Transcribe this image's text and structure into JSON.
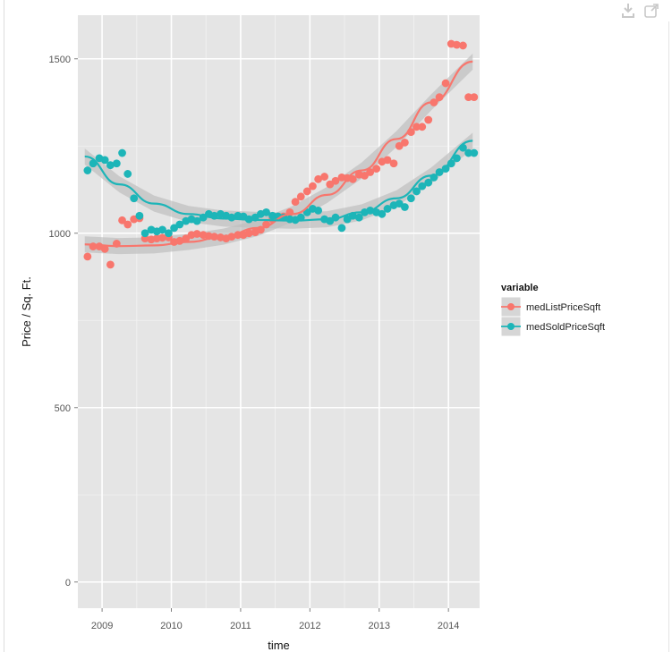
{
  "toolbar": {
    "download_icon": "download-icon",
    "popout_icon": "popout-icon"
  },
  "colors": {
    "panel_bg": "#e5e5e5",
    "grid": "#ffffff",
    "list_series": "#f8766d",
    "sold_series": "#1db5b8",
    "smooth_band": "#bfbfbf"
  },
  "chart_data": {
    "type": "scatter",
    "xlabel": "time",
    "ylabel": "Price / Sq. Ft.",
    "xlim": [
      2008.65,
      2014.45
    ],
    "ylim": [
      -75,
      1625
    ],
    "x_ticks": [
      2009,
      2010,
      2011,
      2012,
      2013,
      2014
    ],
    "x_tick_labels": [
      "2009",
      "2010",
      "2011",
      "2012",
      "2013",
      "2014"
    ],
    "y_ticks": [
      0,
      500,
      1000,
      1500
    ],
    "y_tick_labels": [
      "0",
      "500",
      "1000",
      "1500"
    ],
    "grid": true,
    "legend": {
      "title": "variable",
      "position": "right"
    },
    "series": [
      {
        "name": "medListPriceSqft",
        "color": "#f8766d",
        "points": [
          [
            2008.79,
            933
          ],
          [
            2008.87,
            962
          ],
          [
            2008.96,
            962
          ],
          [
            2009.04,
            955
          ],
          [
            2009.12,
            910
          ],
          [
            2009.21,
            970
          ],
          [
            2009.29,
            1037
          ],
          [
            2009.37,
            1025
          ],
          [
            2009.46,
            1040
          ],
          [
            2009.54,
            1043
          ],
          [
            2009.62,
            985
          ],
          [
            2009.71,
            982
          ],
          [
            2009.79,
            985
          ],
          [
            2009.87,
            987
          ],
          [
            2009.96,
            988
          ],
          [
            2010.04,
            975
          ],
          [
            2010.12,
            978
          ],
          [
            2010.21,
            985
          ],
          [
            2010.29,
            995
          ],
          [
            2010.37,
            998
          ],
          [
            2010.46,
            995
          ],
          [
            2010.54,
            992
          ],
          [
            2010.62,
            990
          ],
          [
            2010.71,
            988
          ],
          [
            2010.79,
            985
          ],
          [
            2010.87,
            990
          ],
          [
            2010.96,
            995
          ],
          [
            2011.04,
            995
          ],
          [
            2011.12,
            1000
          ],
          [
            2011.21,
            1003
          ],
          [
            2011.29,
            1010
          ],
          [
            2011.37,
            1025
          ],
          [
            2011.46,
            1040
          ],
          [
            2011.54,
            1045
          ],
          [
            2011.62,
            1048
          ],
          [
            2011.71,
            1060
          ],
          [
            2011.79,
            1090
          ],
          [
            2011.87,
            1105
          ],
          [
            2011.96,
            1120
          ],
          [
            2012.04,
            1135
          ],
          [
            2012.12,
            1155
          ],
          [
            2012.21,
            1162
          ],
          [
            2012.29,
            1140
          ],
          [
            2012.37,
            1150
          ],
          [
            2012.46,
            1160
          ],
          [
            2012.54,
            1158
          ],
          [
            2012.62,
            1155
          ],
          [
            2012.71,
            1168
          ],
          [
            2012.79,
            1165
          ],
          [
            2012.87,
            1175
          ],
          [
            2012.96,
            1185
          ],
          [
            2013.04,
            1205
          ],
          [
            2013.12,
            1210
          ],
          [
            2013.21,
            1200
          ],
          [
            2013.29,
            1250
          ],
          [
            2013.37,
            1260
          ],
          [
            2013.46,
            1290
          ],
          [
            2013.54,
            1305
          ],
          [
            2013.62,
            1305
          ],
          [
            2013.71,
            1325
          ],
          [
            2013.79,
            1375
          ],
          [
            2013.87,
            1390
          ],
          [
            2013.96,
            1430
          ],
          [
            2014.04,
            1543
          ],
          [
            2014.12,
            1540
          ],
          [
            2014.21,
            1538
          ],
          [
            2014.29,
            1390
          ],
          [
            2014.37,
            1390
          ]
        ],
        "smooth": [
          [
            2008.75,
            968
          ],
          [
            2009.25,
            963
          ],
          [
            2009.75,
            965
          ],
          [
            2010.25,
            975
          ],
          [
            2010.75,
            990
          ],
          [
            2011.25,
            1015
          ],
          [
            2011.75,
            1055
          ],
          [
            2012.25,
            1110
          ],
          [
            2012.75,
            1180
          ],
          [
            2013.25,
            1270
          ],
          [
            2013.75,
            1375
          ],
          [
            2014.35,
            1492
          ]
        ]
      },
      {
        "name": "medSoldPriceSqft",
        "color": "#1db5b8",
        "points": [
          [
            2008.79,
            1180
          ],
          [
            2008.87,
            1200
          ],
          [
            2008.96,
            1215
          ],
          [
            2009.04,
            1210
          ],
          [
            2009.12,
            1195
          ],
          [
            2009.21,
            1200
          ],
          [
            2009.29,
            1230
          ],
          [
            2009.37,
            1170
          ],
          [
            2009.46,
            1100
          ],
          [
            2009.54,
            1050
          ],
          [
            2009.62,
            1000
          ],
          [
            2009.71,
            1010
          ],
          [
            2009.79,
            1005
          ],
          [
            2009.87,
            1010
          ],
          [
            2009.96,
            1000
          ],
          [
            2010.04,
            1015
          ],
          [
            2010.12,
            1025
          ],
          [
            2010.21,
            1035
          ],
          [
            2010.29,
            1040
          ],
          [
            2010.37,
            1035
          ],
          [
            2010.46,
            1045
          ],
          [
            2010.54,
            1055
          ],
          [
            2010.62,
            1050
          ],
          [
            2010.71,
            1055
          ],
          [
            2010.79,
            1050
          ],
          [
            2010.87,
            1045
          ],
          [
            2010.96,
            1050
          ],
          [
            2011.04,
            1048
          ],
          [
            2011.12,
            1040
          ],
          [
            2011.21,
            1045
          ],
          [
            2011.29,
            1055
          ],
          [
            2011.37,
            1060
          ],
          [
            2011.46,
            1050
          ],
          [
            2011.54,
            1048
          ],
          [
            2011.62,
            1045
          ],
          [
            2011.71,
            1040
          ],
          [
            2011.79,
            1038
          ],
          [
            2011.87,
            1045
          ],
          [
            2011.96,
            1060
          ],
          [
            2012.04,
            1070
          ],
          [
            2012.12,
            1065
          ],
          [
            2012.21,
            1040
          ],
          [
            2012.29,
            1035
          ],
          [
            2012.37,
            1045
          ],
          [
            2012.46,
            1015
          ],
          [
            2012.54,
            1040
          ],
          [
            2012.62,
            1050
          ],
          [
            2012.71,
            1045
          ],
          [
            2012.79,
            1060
          ],
          [
            2012.87,
            1065
          ],
          [
            2012.96,
            1060
          ],
          [
            2013.04,
            1055
          ],
          [
            2013.12,
            1070
          ],
          [
            2013.21,
            1080
          ],
          [
            2013.29,
            1085
          ],
          [
            2013.37,
            1075
          ],
          [
            2013.46,
            1100
          ],
          [
            2013.54,
            1120
          ],
          [
            2013.62,
            1135
          ],
          [
            2013.71,
            1145
          ],
          [
            2013.79,
            1160
          ],
          [
            2013.87,
            1175
          ],
          [
            2013.96,
            1185
          ],
          [
            2014.04,
            1200
          ],
          [
            2014.12,
            1215
          ],
          [
            2014.21,
            1245
          ],
          [
            2014.29,
            1230
          ],
          [
            2014.37,
            1230
          ]
        ],
        "smooth": [
          [
            2008.75,
            1220
          ],
          [
            2009.25,
            1140
          ],
          [
            2009.75,
            1085
          ],
          [
            2010.25,
            1055
          ],
          [
            2010.75,
            1042
          ],
          [
            2011.25,
            1038
          ],
          [
            2011.75,
            1036
          ],
          [
            2012.25,
            1040
          ],
          [
            2012.75,
            1060
          ],
          [
            2013.25,
            1100
          ],
          [
            2013.75,
            1165
          ],
          [
            2014.35,
            1265
          ]
        ]
      }
    ]
  }
}
